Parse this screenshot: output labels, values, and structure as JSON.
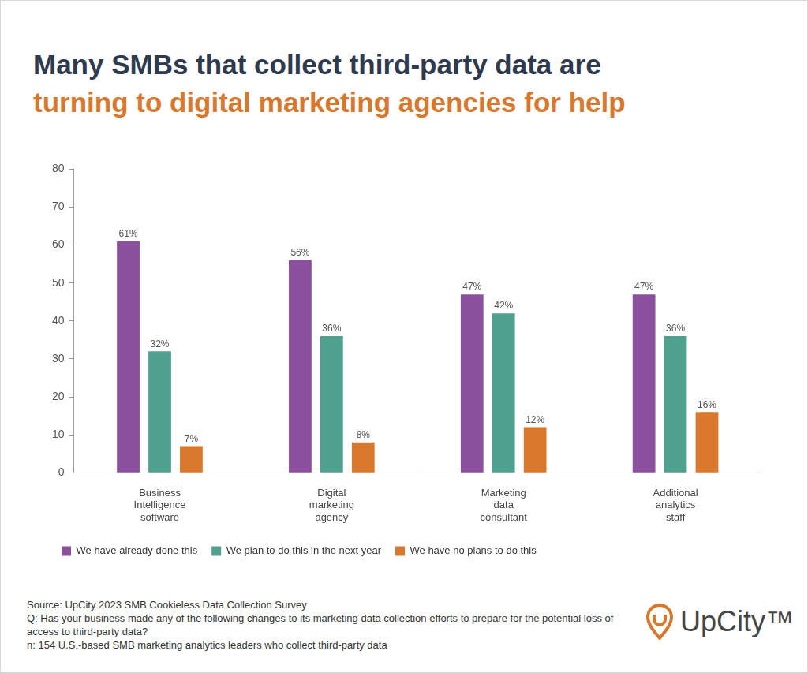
{
  "chart_data": {
    "type": "bar",
    "title": [
      "Many SMBs that collect third-party data are",
      "turning to digital marketing agencies for help"
    ],
    "categories": [
      [
        "Business",
        "Intelligence",
        "software"
      ],
      [
        "Digital",
        "marketing",
        "agency"
      ],
      [
        "Marketing",
        "data",
        "consultant"
      ],
      [
        "Additional",
        "analytics",
        "staff"
      ]
    ],
    "series": [
      {
        "name": "We have already done this",
        "color": "#8a4f9d",
        "values": [
          61,
          56,
          47,
          47
        ],
        "value_labels": [
          "61%",
          "56%",
          "47%",
          "47%"
        ]
      },
      {
        "name": "We plan to do this in the next year",
        "color": "#50a090",
        "values": [
          32,
          36,
          42,
          36
        ],
        "value_labels": [
          "32%",
          "36%",
          "42%",
          "36%"
        ]
      },
      {
        "name": "We have no plans to do this",
        "color": "#d9782d",
        "values": [
          7,
          8,
          12,
          16
        ],
        "value_labels": [
          "7%",
          "8%",
          "12%",
          "16%"
        ]
      }
    ],
    "ylim": [
      0,
      80
    ],
    "yticks": [
      0,
      10,
      20,
      30,
      40,
      50,
      60,
      70,
      80
    ],
    "grid": false,
    "legend": "bottom",
    "data_labels": true,
    "footnotes": [
      "Source: UpCity 2023 SMB Cookieless Data Collection Survey",
      "Q: Has your business made any of the following changes to its marketing data collection efforts to prepare for the potential loss of access to third-party data?",
      "n: 154 U.S.-based SMB marketing analytics leaders who collect third-party data"
    ],
    "logo": "UpCity™"
  }
}
